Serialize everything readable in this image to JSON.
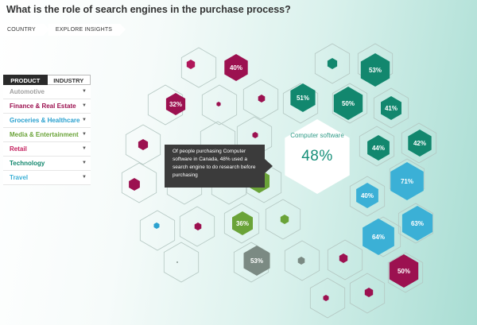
{
  "header": {
    "title": "What is the role of search engines in the purchase process?"
  },
  "breadcrumbs": [
    "COUNTRY",
    "EXPLORE INSIGHTS"
  ],
  "sidebar": {
    "tabs": [
      "PRODUCT",
      "INDUSTRY"
    ],
    "categories": [
      {
        "label": "Automotive",
        "color": "#a0a0a0"
      },
      {
        "label": "Finance & Real Estate",
        "color": "#9c1150"
      },
      {
        "label": "Groceries & Healthcare",
        "color": "#2aa1cf"
      },
      {
        "label": "Media & Entertainment",
        "color": "#6aa338"
      },
      {
        "label": "Retail",
        "color": "#c4205e"
      },
      {
        "label": "Technology",
        "color": "#12876e"
      },
      {
        "label": "Travel",
        "color": "#3bb0d6"
      }
    ]
  },
  "tooltip": {
    "text": "Of people purchasing Computer software in Canada, 48% used a search engine to do research before purchasing"
  },
  "featured": {
    "label": "Computer software",
    "value": "48%"
  },
  "hexes": [
    {
      "name": "hex-40-maroon",
      "pct": "40%",
      "color": "#9c1150"
    },
    {
      "name": "hex-53-teal",
      "pct": "53%",
      "color": "#12876e"
    },
    {
      "name": "hex-32-maroon",
      "pct": "32%",
      "color": "#9c1150"
    },
    {
      "name": "hex-51-teal",
      "pct": "51%",
      "color": "#12876e"
    },
    {
      "name": "hex-50-teal",
      "pct": "50%",
      "color": "#12876e"
    },
    {
      "name": "hex-41-teal",
      "pct": "41%",
      "color": "#12876e"
    },
    {
      "name": "hex-44-teal",
      "pct": "44%",
      "color": "#12876e"
    },
    {
      "name": "hex-42-teal",
      "pct": "42%",
      "color": "#12876e"
    },
    {
      "name": "hex-71-blue",
      "pct": "71%",
      "color": "#3bb0d6"
    },
    {
      "name": "hex-40-blue",
      "pct": "40%",
      "color": "#3bb0d6"
    },
    {
      "name": "hex-36-green",
      "pct": "36%",
      "color": "#6aa338"
    },
    {
      "name": "hex-63-blue",
      "pct": "63%",
      "color": "#3bb0d6"
    },
    {
      "name": "hex-64-blue",
      "pct": "64%",
      "color": "#3bb0d6"
    },
    {
      "name": "hex-53-gray",
      "pct": "53%",
      "color": "#7b8a83"
    },
    {
      "name": "hex-50-maroon",
      "pct": "50%",
      "color": "#9c1150"
    }
  ],
  "colors": {
    "teal": "#12876e",
    "maroon": "#9c1150",
    "blue": "#3bb0d6",
    "green": "#6aa338",
    "gray": "#7b8a83",
    "crimson": "#b0175a",
    "skyblue": "#2aa1cf"
  }
}
